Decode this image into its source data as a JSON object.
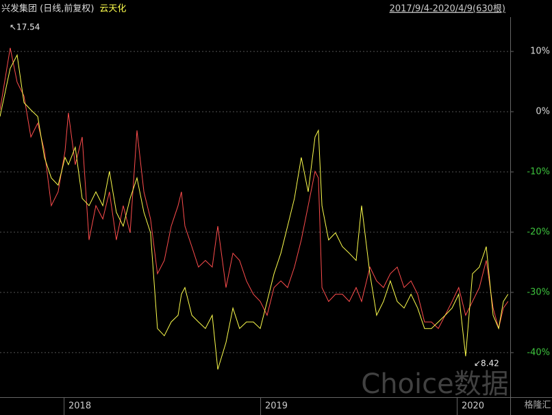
{
  "chart_data": {
    "type": "line",
    "subtitle": "2017/9/4-2020/4/9(630根)",
    "x": [
      2017.674,
      2017.726,
      2017.761,
      2017.796,
      2017.831,
      2017.866,
      2017.9,
      2017.935,
      2017.97,
      2018.005,
      2018.022,
      2018.057,
      2018.092,
      2018.127,
      2018.162,
      2018.197,
      2018.231,
      2018.266,
      2018.301,
      2018.336,
      2018.371,
      2018.406,
      2018.44,
      2018.475,
      2018.51,
      2018.545,
      2018.58,
      2018.597,
      2018.615,
      2018.65,
      2018.684,
      2018.719,
      2018.754,
      2018.782,
      2018.824,
      2018.859,
      2018.893,
      2018.928,
      2018.963,
      2018.998,
      2019.033,
      2019.068,
      2019.103,
      2019.137,
      2019.172,
      2019.207,
      2019.242,
      2019.277,
      2019.294,
      2019.312,
      2019.346,
      2019.381,
      2019.416,
      2019.451,
      2019.486,
      2019.514,
      2019.556,
      2019.59,
      2019.625,
      2019.66,
      2019.695,
      2019.73,
      2019.765,
      2019.799,
      2019.834,
      2019.869,
      2019.904,
      2019.939,
      2019.974,
      2020.008,
      2020.043,
      2020.078,
      2020.113,
      2020.148,
      2020.183,
      2020.211,
      2020.235,
      2020.259
    ],
    "series": [
      {
        "name": "兴发集团 (日线,前复权)",
        "color": "#ff4d4d",
        "values": [
          0.3,
          10.6,
          4.9,
          2.6,
          -4.2,
          -1.9,
          -6.5,
          -15.6,
          -13.3,
          -6.5,
          -0.2,
          -8.8,
          -4.2,
          -21.3,
          -15.6,
          -17.8,
          -13.3,
          -21.3,
          -15.6,
          -20.1,
          -3.1,
          -13.3,
          -17.8,
          -26.9,
          -24.7,
          -19.0,
          -15.6,
          -13.3,
          -19.0,
          -22.4,
          -25.8,
          -24.7,
          -25.8,
          -19.0,
          -29.2,
          -23.5,
          -24.7,
          -28.1,
          -30.3,
          -31.5,
          -33.8,
          -29.2,
          -28.1,
          -29.2,
          -25.8,
          -21.3,
          -15.6,
          -9.9,
          -11.0,
          -29.2,
          -31.5,
          -30.3,
          -30.3,
          -31.5,
          -29.2,
          -31.5,
          -25.8,
          -28.1,
          -29.2,
          -26.9,
          -25.8,
          -29.2,
          -28.1,
          -30.3,
          -34.9,
          -34.9,
          -36.0,
          -33.8,
          -31.5,
          -29.2,
          -33.8,
          -31.5,
          -29.2,
          -24.7,
          -32.6,
          -36.0,
          -32.6,
          -31.5
        ]
      },
      {
        "name": "云天化",
        "color": "#ffff4d",
        "values": [
          -0.8,
          7.2,
          9.4,
          1.5,
          0.3,
          -0.8,
          -7.6,
          -11.0,
          -12.2,
          -7.6,
          -8.8,
          -5.9,
          -14.4,
          -15.6,
          -13.3,
          -15.6,
          -9.9,
          -16.7,
          -19.0,
          -14.4,
          -11.0,
          -16.7,
          -20.1,
          -36.0,
          -37.2,
          -34.9,
          -33.8,
          -30.3,
          -29.2,
          -33.8,
          -34.9,
          -36.0,
          -33.8,
          -42.8,
          -38.3,
          -32.6,
          -36.0,
          -34.9,
          -34.9,
          -36.0,
          -31.5,
          -26.9,
          -23.5,
          -19.0,
          -14.4,
          -7.6,
          -13.3,
          -4.2,
          -3.1,
          -15.6,
          -21.3,
          -20.1,
          -22.4,
          -23.5,
          -24.7,
          -15.6,
          -26.9,
          -33.8,
          -31.5,
          -28.1,
          -31.5,
          -32.6,
          -30.3,
          -32.6,
          -36.0,
          -36.0,
          -34.9,
          -33.8,
          -32.6,
          -30.3,
          -40.6,
          -26.9,
          -25.8,
          -22.4,
          -33.8,
          -36.0,
          -31.5,
          -30.3
        ]
      }
    ],
    "xlim": [
      2017.674,
      2020.27
    ],
    "xticks": [
      2018,
      2019,
      2020
    ],
    "ylim": [
      -47.4,
      15.7
    ],
    "yticks": [
      {
        "value": 10,
        "label": "10%"
      },
      {
        "value": 0,
        "label": "0%"
      },
      {
        "value": -10,
        "label": "-10%"
      },
      {
        "value": -20,
        "label": "-20%"
      },
      {
        "value": -30,
        "label": "-30%"
      },
      {
        "value": -40,
        "label": "-40%"
      }
    ],
    "grid": true,
    "annotations": [
      "↖17.54",
      "↙8.42"
    ],
    "watermark": "Choice数据",
    "logo": "格隆汇"
  }
}
